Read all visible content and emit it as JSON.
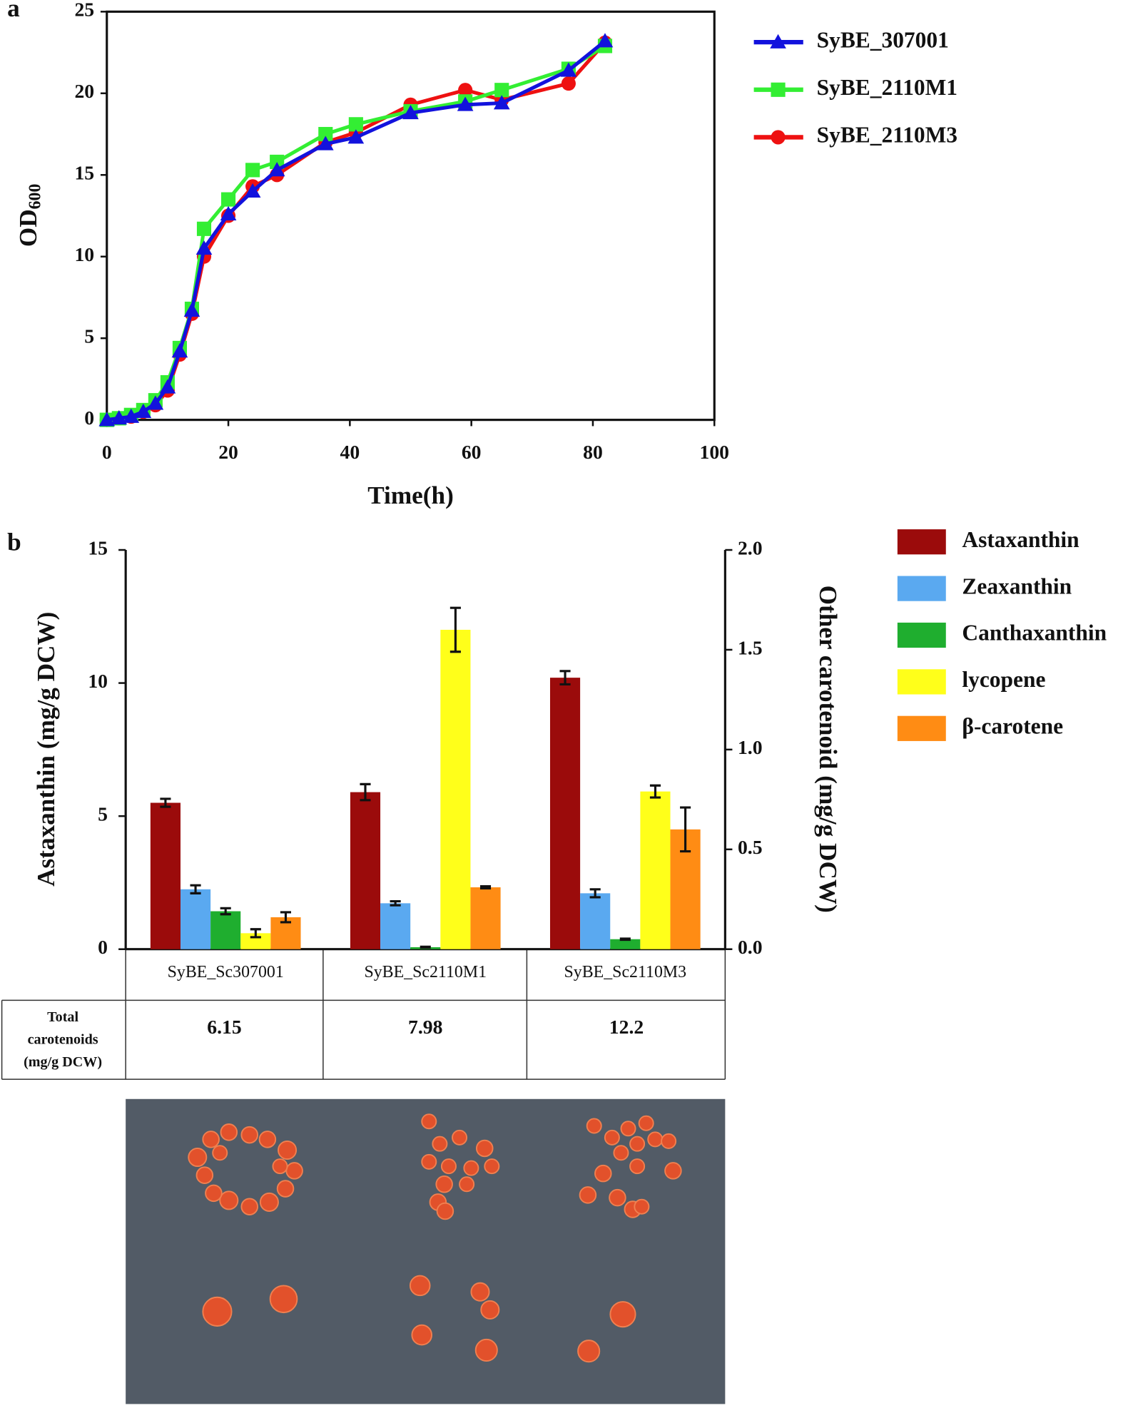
{
  "chart_data": [
    {
      "type": "line",
      "panel_label": "a",
      "xlabel": "Time(h)",
      "ylabel": "OD",
      "ylabel_subscript": "600",
      "x": [
        0,
        2,
        4,
        6,
        8,
        10,
        12,
        14,
        16,
        20,
        24,
        28,
        36,
        41,
        50,
        59,
        65,
        76,
        82
      ],
      "xlim": [
        0,
        100
      ],
      "xticks": [
        0,
        20,
        40,
        60,
        80,
        100
      ],
      "ylim": [
        0,
        25
      ],
      "yticks": [
        0,
        5,
        10,
        15,
        20,
        25
      ],
      "series": [
        {
          "name": "SyBE_307001",
          "color": "#1212dd",
          "marker": "triangle",
          "values": [
            0,
            0.1,
            0.2,
            0.5,
            1.0,
            2.0,
            4.2,
            6.7,
            10.5,
            12.6,
            14.0,
            15.3,
            16.9,
            17.3,
            18.8,
            19.3,
            19.4,
            21.4,
            23.2
          ]
        },
        {
          "name": "SyBE_2110M1",
          "color": "#33ee33",
          "marker": "square",
          "values": [
            0,
            0.1,
            0.3,
            0.6,
            1.2,
            2.3,
            4.4,
            6.8,
            11.7,
            13.5,
            15.3,
            15.8,
            17.5,
            18.1,
            18.9,
            19.5,
            20.2,
            21.5,
            22.9
          ]
        },
        {
          "name": "SyBE_2110M3",
          "color": "#ee1111",
          "marker": "circle",
          "values": [
            0,
            0.1,
            0.2,
            0.5,
            0.9,
            1.8,
            4.0,
            6.5,
            10.0,
            12.5,
            14.3,
            15.0,
            17.0,
            17.6,
            19.3,
            20.2,
            19.6,
            20.6,
            23.1
          ]
        }
      ]
    },
    {
      "type": "bar",
      "panel_label": "b",
      "ylabel": "Astaxanthin (mg/g DCW)",
      "y2label": "Other carotenoid (mg/g DCW)",
      "categories": [
        "SyBE_Sc307001",
        "SyBE_Sc2110M1",
        "SyBE_Sc2110M3"
      ],
      "ylim": [
        0,
        15
      ],
      "yticks": [
        0,
        5,
        10,
        15
      ],
      "y2lim": [
        0,
        2
      ],
      "y2ticks": [
        {
          "value": 0,
          "label": "0.0"
        },
        0.5,
        {
          "value": 1,
          "label": "1.0"
        },
        1.5,
        {
          "value": 2,
          "label": "2.0"
        }
      ],
      "series": [
        {
          "name": "Astaxanthin",
          "color": "#9b0b0b",
          "values": [
            5.5,
            5.9,
            10.2
          ],
          "errors": [
            0.15,
            0.3,
            0.25
          ]
        },
        {
          "name": "Zeaxanthin",
          "color": "#5aa9f0",
          "axis": "y2",
          "values": [
            0.3,
            0.23,
            0.28
          ],
          "errors": [
            0.02,
            0.01,
            0.02
          ]
        },
        {
          "name": "Canthaxanthin",
          "color": "#1fae2f",
          "axis": "y2",
          "values": [
            0.19,
            0.01,
            0.05
          ],
          "errors": [
            0.015,
            0.002,
            0.003
          ]
        },
        {
          "name": "lycopene",
          "color": "#ffff1a",
          "axis": "y2",
          "values": [
            0.08,
            1.6,
            0.79
          ],
          "errors": [
            0.02,
            0.11,
            0.03
          ]
        },
        {
          "name": "β-carotene",
          "color": "#ff8c14",
          "axis": "y2",
          "values": [
            0.16,
            0.31,
            0.6
          ],
          "errors": [
            0.025,
            0.005,
            0.11
          ]
        }
      ],
      "table": {
        "header": [
          "Total",
          "carotenoids",
          "(mg/g DCW)"
        ],
        "values": [
          6.15,
          7.98,
          12.2
        ]
      }
    }
  ]
}
